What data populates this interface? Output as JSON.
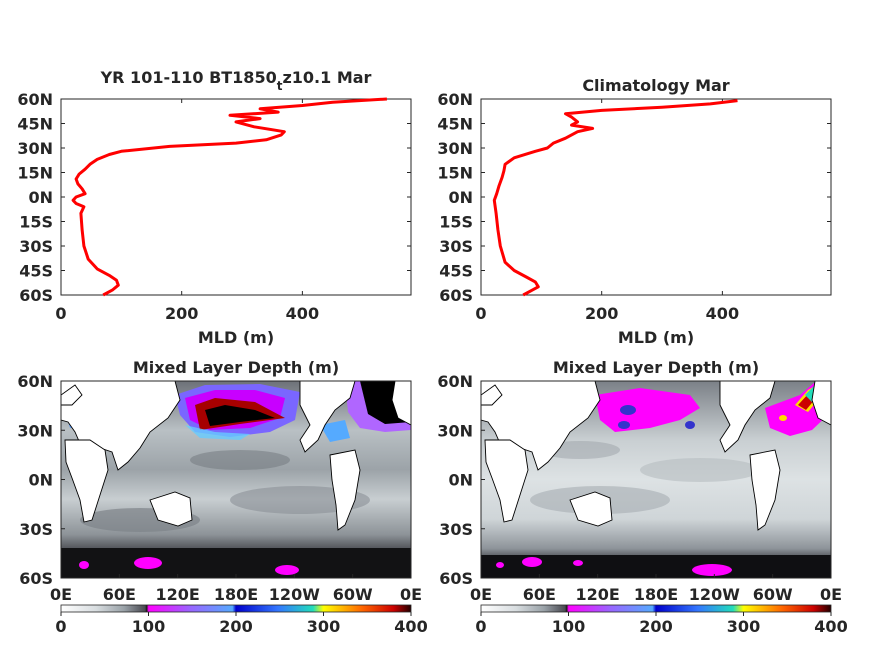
{
  "colors": {
    "profile_line": "#ff0000",
    "axis": "#262626",
    "land": "#ffffff",
    "coast": "#000000"
  },
  "chart_data": [
    {
      "type": "line",
      "title_main": "YR 101-110 BT1850",
      "title_sub": "t",
      "title_tail": "z10.1 Mar",
      "xlabel": "MLD (m)",
      "ylabel": "",
      "xlim": [
        0,
        580
      ],
      "ylim": [
        -60,
        60
      ],
      "xticks": [
        "0",
        "200",
        "400"
      ],
      "yticks": [
        "60N",
        "45N",
        "30N",
        "15N",
        "0N",
        "15S",
        "30S",
        "45S",
        "60S"
      ],
      "grid": false,
      "series": [
        {
          "points": [
            [
              70,
              -60
            ],
            [
              85,
              -57
            ],
            [
              95,
              -54
            ],
            [
              92,
              -51
            ],
            [
              80,
              -48
            ],
            [
              60,
              -44
            ],
            [
              45,
              -38
            ],
            [
              38,
              -30
            ],
            [
              35,
              -20
            ],
            [
              33,
              -10
            ],
            [
              38,
              -6
            ],
            [
              25,
              -4
            ],
            [
              20,
              -2
            ],
            [
              25,
              0
            ],
            [
              40,
              2
            ],
            [
              35,
              5
            ],
            [
              28,
              8
            ],
            [
              25,
              11
            ],
            [
              30,
              14
            ],
            [
              40,
              17
            ],
            [
              48,
              20
            ],
            [
              60,
              23
            ],
            [
              80,
              26
            ],
            [
              100,
              28
            ],
            [
              180,
              31
            ],
            [
              290,
              33
            ],
            [
              340,
              35
            ],
            [
              365,
              38
            ],
            [
              370,
              40
            ],
            [
              320,
              43
            ],
            [
              290,
              46
            ],
            [
              330,
              48
            ],
            [
              280,
              50
            ],
            [
              360,
              52
            ],
            [
              330,
              54
            ],
            [
              400,
              56
            ],
            [
              450,
              58
            ],
            [
              540,
              60
            ]
          ]
        }
      ]
    },
    {
      "type": "line",
      "title_main": "Climatology Mar",
      "xlabel": "MLD (m)",
      "ylabel": "",
      "xlim": [
        0,
        580
      ],
      "ylim": [
        -60,
        60
      ],
      "xticks": [
        "0",
        "200",
        "400"
      ],
      "yticks": [
        "60N",
        "45N",
        "30N",
        "15N",
        "0N",
        "15S",
        "30S",
        "45S",
        "60S"
      ],
      "grid": false,
      "series": [
        {
          "points": [
            [
              70,
              -60
            ],
            [
              85,
              -57
            ],
            [
              95,
              -55
            ],
            [
              90,
              -52
            ],
            [
              75,
              -49
            ],
            [
              55,
              -45
            ],
            [
              40,
              -40
            ],
            [
              32,
              -30
            ],
            [
              28,
              -20
            ],
            [
              25,
              -10
            ],
            [
              22,
              -2
            ],
            [
              26,
              2
            ],
            [
              30,
              7
            ],
            [
              35,
              12
            ],
            [
              38,
              16
            ],
            [
              40,
              20
            ],
            [
              55,
              24
            ],
            [
              90,
              28
            ],
            [
              110,
              30
            ],
            [
              120,
              33
            ],
            [
              140,
              36
            ],
            [
              160,
              40
            ],
            [
              185,
              42
            ],
            [
              150,
              44
            ],
            [
              160,
              46
            ],
            [
              150,
              49
            ],
            [
              140,
              51
            ],
            [
              200,
              53
            ],
            [
              300,
              55
            ],
            [
              380,
              57
            ],
            [
              425,
              59
            ]
          ]
        }
      ]
    },
    {
      "type": "heatmap",
      "title": "Mixed Layer Depth (m)",
      "xticks": [
        "0E",
        "60E",
        "120E",
        "180E",
        "120W",
        "60W",
        "0E"
      ],
      "yticks": [
        "60N",
        "30N",
        "0N",
        "30S",
        "60S"
      ],
      "colorbar_ticks": [
        "0",
        "100",
        "200",
        "300",
        "400"
      ],
      "clim": [
        0,
        400
      ]
    },
    {
      "type": "heatmap",
      "title": "Mixed Layer Depth (m)",
      "xticks": [
        "0E",
        "60E",
        "120E",
        "180E",
        "120W",
        "60W",
        "0E"
      ],
      "yticks": [
        "60N",
        "30N",
        "0N",
        "30S",
        "60S"
      ],
      "colorbar_ticks": [
        "0",
        "100",
        "200",
        "300",
        "400"
      ],
      "clim": [
        0,
        400
      ]
    }
  ]
}
